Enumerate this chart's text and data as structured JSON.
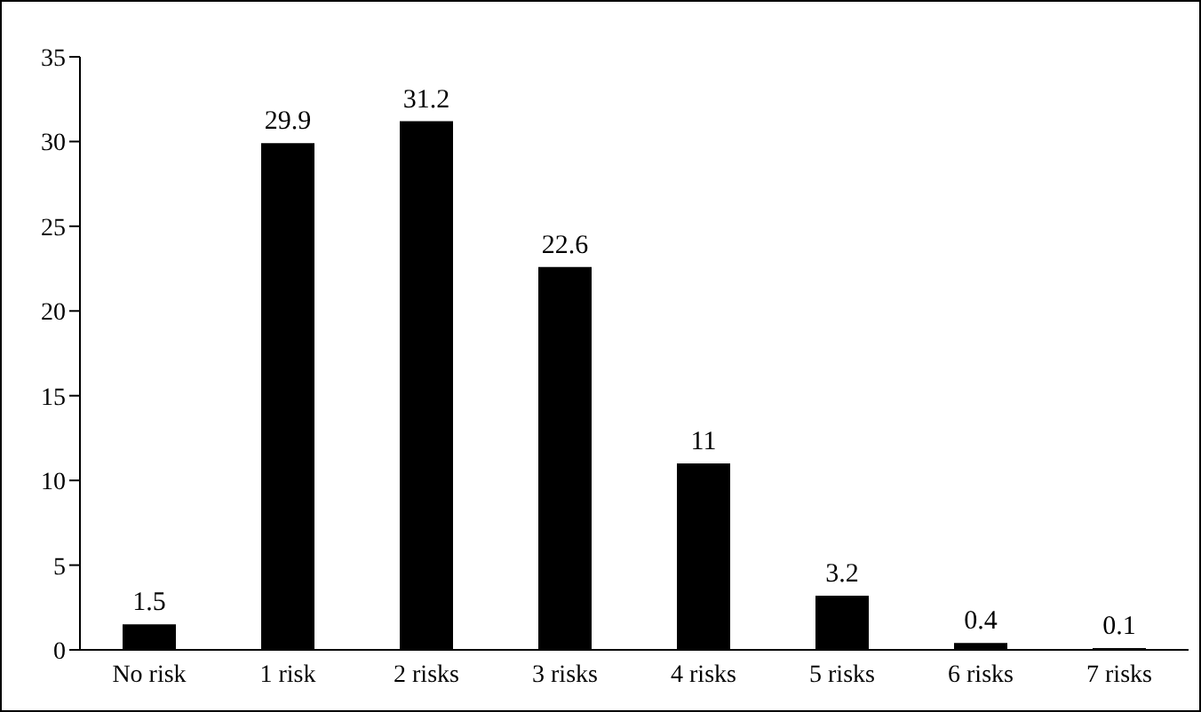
{
  "chart_data": {
    "type": "bar",
    "categories": [
      "No risk",
      "1 risk",
      "2 risks",
      "3 risks",
      "4 risks",
      "5 risks",
      "6 risks",
      "7 risks"
    ],
    "values": [
      1.5,
      29.9,
      31.2,
      22.6,
      11,
      3.2,
      0.4,
      0.1
    ],
    "color": "#000000",
    "ylim": [
      0,
      35
    ],
    "yticks": [
      0,
      5,
      10,
      15,
      20,
      25,
      30,
      35
    ],
    "data_labels": true,
    "grid": false,
    "legend": false
  }
}
